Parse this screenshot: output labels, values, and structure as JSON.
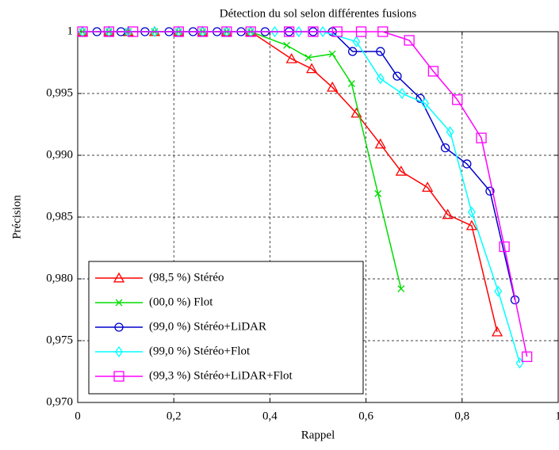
{
  "chart_data": {
    "type": "line",
    "title": "Détection du sol selon différentes fusions",
    "x_label": "Rappel",
    "y_label": "Précision",
    "xlim": [
      0,
      1
    ],
    "ylim": [
      0.97,
      1
    ],
    "xticks": [
      0,
      {
        "value": 0.2,
        "label": "0,2"
      },
      {
        "value": 0.4,
        "label": "0,4"
      },
      {
        "value": 0.6,
        "label": "0,6"
      },
      {
        "value": 0.8,
        "label": "0,8"
      },
      1
    ],
    "yticks": [
      {
        "value": 0.97,
        "label": "0,970"
      },
      {
        "value": 0.975,
        "label": "0,975"
      },
      {
        "value": 0.98,
        "label": "0,980"
      },
      {
        "value": 0.985,
        "label": "0,985"
      },
      {
        "value": 0.99,
        "label": "0,990"
      },
      {
        "value": 0.995,
        "label": "0,995"
      },
      1
    ],
    "grid": true,
    "legend": "lower left",
    "series": [
      {
        "name": "(98,5 %) Stéréo",
        "color": "#ff0000",
        "marker": "triangle",
        "x": [
          0.01,
          0.065,
          0.105,
          0.16,
          0.21,
          0.26,
          0.31,
          0.36,
          0.445,
          0.487,
          0.53,
          0.58,
          0.63,
          0.673,
          0.728,
          0.77,
          0.82,
          0.873
        ],
        "values": [
          1,
          1,
          1,
          1,
          1,
          1,
          1,
          1,
          0.9978,
          0.997,
          0.9955,
          0.9934,
          0.9909,
          0.9887,
          0.9874,
          0.9852,
          0.9843,
          0.9757
        ]
      },
      {
        "name": "(00,0 %) Flot",
        "color": "#00dd00",
        "marker": "x",
        "x": [
          0.01,
          0.065,
          0.105,
          0.16,
          0.21,
          0.26,
          0.31,
          0.36,
          0.435,
          0.48,
          0.53,
          0.57,
          0.625,
          0.673
        ],
        "values": [
          1,
          1,
          1,
          1,
          1,
          1,
          1,
          1,
          0.9989,
          0.9979,
          0.9982,
          0.9958,
          0.9869,
          0.9792
        ]
      },
      {
        "name": "(99,0 %) Stéréo+LiDAR",
        "color": "#0000cc",
        "marker": "circle",
        "x": [
          0.04,
          0.09,
          0.14,
          0.19,
          0.24,
          0.29,
          0.34,
          0.39,
          0.44,
          0.49,
          0.53,
          0.572,
          0.63,
          0.665,
          0.713,
          0.765,
          0.81,
          0.858,
          0.91
        ],
        "values": [
          1,
          1,
          1,
          1,
          1,
          1,
          1,
          1,
          1,
          1,
          1,
          0.9984,
          0.9984,
          0.9964,
          0.9946,
          0.9906,
          0.9893,
          0.9871,
          0.9783
        ]
      },
      {
        "name": "(99,0 %) Stéréo+Flot",
        "color": "#00ffff",
        "marker": "diamond",
        "x": [
          0.01,
          0.065,
          0.105,
          0.16,
          0.21,
          0.26,
          0.31,
          0.36,
          0.41,
          0.46,
          0.51,
          0.58,
          0.63,
          0.675,
          0.723,
          0.775,
          0.82,
          0.875,
          0.92
        ],
        "values": [
          1,
          1,
          1,
          1,
          1,
          1,
          1,
          1,
          1,
          1,
          1,
          0.9992,
          0.9962,
          0.995,
          0.9942,
          0.9919,
          0.9854,
          0.979,
          0.9732
        ]
      },
      {
        "name": "(99,3 %) Stéréo+LiDAR+Flot",
        "color": "#ff00ff",
        "marker": "square",
        "x": [
          0.01,
          0.065,
          0.115,
          0.21,
          0.26,
          0.31,
          0.36,
          0.44,
          0.49,
          0.54,
          0.59,
          0.635,
          0.69,
          0.74,
          0.79,
          0.84,
          0.888,
          0.935
        ],
        "values": [
          1,
          1,
          1,
          1,
          1,
          1,
          1,
          1,
          1,
          1,
          1,
          1,
          0.9993,
          0.9968,
          0.9945,
          0.9914,
          0.9826,
          0.9737
        ]
      }
    ]
  }
}
